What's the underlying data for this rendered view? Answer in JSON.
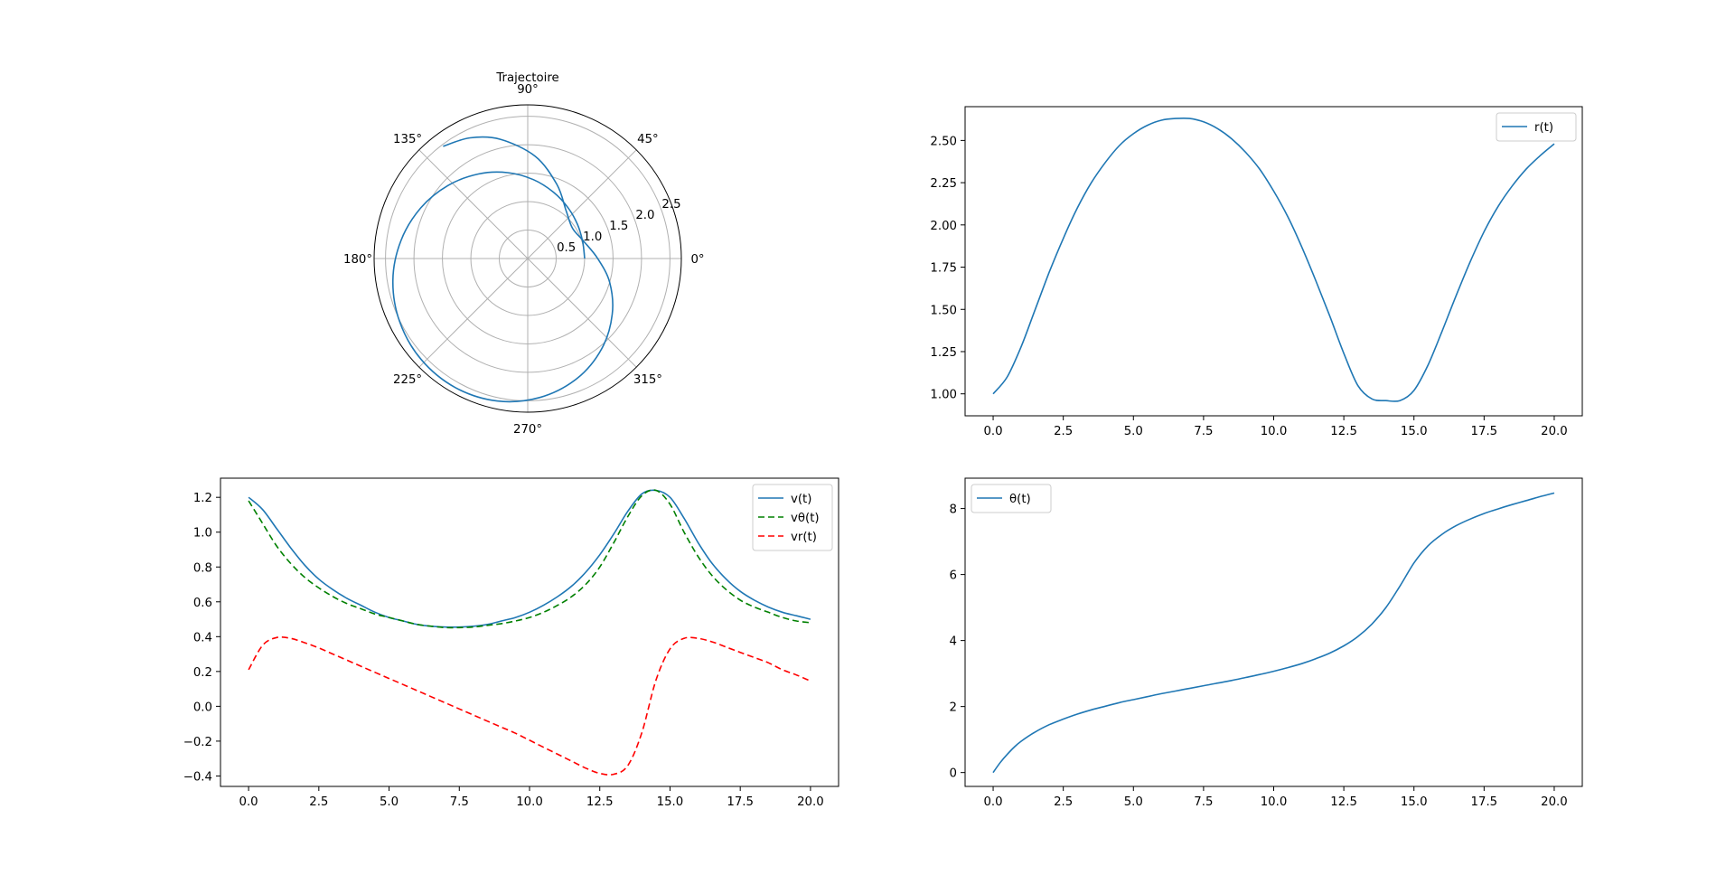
{
  "chart_data": [
    {
      "type": "polar",
      "title": "Trajectoire",
      "angle_ticks": [
        "0°",
        "45°",
        "90°",
        "135°",
        "180°",
        "225°",
        "270°",
        "315°"
      ],
      "angle_tick_degrees": [
        0,
        45,
        90,
        135,
        180,
        225,
        270,
        315
      ],
      "radial_ticks": [
        "0.5",
        "1.0",
        "1.5",
        "2.0",
        "2.5"
      ],
      "radial_tick_values": [
        0.5,
        1.0,
        1.5,
        2.0,
        2.5
      ],
      "rmax": 2.7,
      "grid": true,
      "series": [
        {
          "color": "#1f77b4",
          "dash": "",
          "theta": [
            0.0,
            0.3,
            0.6,
            0.9,
            1.2,
            1.5,
            1.8,
            2.1,
            2.4,
            2.7,
            3.0,
            3.3,
            3.6,
            3.9,
            4.2,
            4.5,
            4.8,
            5.1,
            5.4,
            5.7,
            6.0,
            6.283,
            6.58,
            6.88,
            7.18,
            7.48,
            7.78,
            8.08,
            8.3,
            8.5
          ],
          "r": [
            1.0,
            1.01,
            1.06,
            1.14,
            1.25,
            1.39,
            1.55,
            1.72,
            1.9,
            2.08,
            2.25,
            2.4,
            2.51,
            2.58,
            2.6,
            2.56,
            2.45,
            2.28,
            2.05,
            1.78,
            1.5,
            1.23,
            1.03,
            0.95,
            1.08,
            1.4,
            1.8,
            2.15,
            2.35,
            2.47
          ]
        }
      ]
    },
    {
      "type": "line",
      "x_ticks": [
        "0.0",
        "2.5",
        "5.0",
        "7.5",
        "10.0",
        "12.5",
        "15.0",
        "17.5",
        "20.0"
      ],
      "x_tick_values": [
        0,
        2.5,
        5,
        7.5,
        10,
        12.5,
        15,
        17.5,
        20
      ],
      "y_ticks": [
        "1.00",
        "1.25",
        "1.50",
        "1.75",
        "2.00",
        "2.25",
        "2.50"
      ],
      "y_tick_values": [
        1.0,
        1.25,
        1.5,
        1.75,
        2.0,
        2.25,
        2.5
      ],
      "xlim": [
        -1.0,
        21.0
      ],
      "ylim": [
        0.87,
        2.7
      ],
      "legend": "upper-right",
      "grid": false,
      "series": [
        {
          "name": "r(t)",
          "color": "#1f77b4",
          "dash": "",
          "x": [
            0,
            0.5,
            1,
            1.5,
            2,
            2.5,
            3,
            3.5,
            4,
            4.5,
            5,
            5.5,
            6,
            6.5,
            7,
            7.5,
            8,
            8.5,
            9,
            9.5,
            10,
            10.5,
            11,
            11.5,
            12,
            12.5,
            13,
            13.5,
            14,
            14.5,
            15,
            15.5,
            16,
            16.5,
            17,
            17.5,
            18,
            18.5,
            19,
            19.5,
            20
          ],
          "y": [
            1.0,
            1.1,
            1.28,
            1.5,
            1.72,
            1.92,
            2.1,
            2.25,
            2.37,
            2.47,
            2.54,
            2.59,
            2.62,
            2.63,
            2.63,
            2.61,
            2.57,
            2.51,
            2.43,
            2.33,
            2.2,
            2.05,
            1.87,
            1.67,
            1.46,
            1.24,
            1.05,
            0.97,
            0.96,
            0.96,
            1.02,
            1.17,
            1.37,
            1.58,
            1.78,
            1.96,
            2.11,
            2.23,
            2.33,
            2.41,
            2.48
          ]
        }
      ]
    },
    {
      "type": "line",
      "x_ticks": [
        "0.0",
        "2.5",
        "5.0",
        "7.5",
        "10.0",
        "12.5",
        "15.0",
        "17.5",
        "20.0"
      ],
      "x_tick_values": [
        0,
        2.5,
        5,
        7.5,
        10,
        12.5,
        15,
        17.5,
        20
      ],
      "y_ticks": [
        "−0.4",
        "−0.2",
        "0.0",
        "0.2",
        "0.4",
        "0.6",
        "0.8",
        "1.0",
        "1.2"
      ],
      "y_tick_values": [
        -0.4,
        -0.2,
        0.0,
        0.2,
        0.4,
        0.6,
        0.8,
        1.0,
        1.2
      ],
      "xlim": [
        -1.0,
        21.0
      ],
      "ylim": [
        -0.46,
        1.31
      ],
      "legend": "upper-right",
      "grid": false,
      "series": [
        {
          "name": "v(t)",
          "color": "#1f77b4",
          "dash": "",
          "x": [
            0,
            0.5,
            1,
            1.5,
            2,
            2.5,
            3,
            3.5,
            4,
            4.5,
            5,
            5.5,
            6,
            6.5,
            7,
            7.5,
            8,
            8.5,
            9,
            9.5,
            10,
            10.5,
            11,
            11.5,
            12,
            12.5,
            13,
            13.5,
            14,
            14.5,
            15,
            15.5,
            16,
            16.5,
            17,
            17.5,
            18,
            18.5,
            19,
            19.5,
            20
          ],
          "y": [
            1.2,
            1.13,
            1.02,
            0.91,
            0.81,
            0.73,
            0.67,
            0.62,
            0.58,
            0.54,
            0.51,
            0.49,
            0.47,
            0.46,
            0.455,
            0.455,
            0.46,
            0.47,
            0.49,
            0.51,
            0.54,
            0.58,
            0.63,
            0.69,
            0.77,
            0.87,
            0.99,
            1.12,
            1.22,
            1.24,
            1.2,
            1.08,
            0.94,
            0.82,
            0.73,
            0.66,
            0.61,
            0.57,
            0.54,
            0.52,
            0.5
          ]
        },
        {
          "name": "vθ(t)",
          "color": "#008000",
          "dash": "7,4",
          "x": [
            0,
            0.5,
            1,
            1.5,
            2,
            2.5,
            3,
            3.5,
            4,
            4.5,
            5,
            5.5,
            6,
            6.5,
            7,
            7.5,
            8,
            8.5,
            9,
            9.5,
            10,
            10.5,
            11,
            11.5,
            12,
            12.5,
            13,
            13.5,
            14,
            14.5,
            15,
            15.5,
            16,
            16.5,
            17,
            17.5,
            18,
            18.5,
            19,
            19.5,
            20
          ],
          "y": [
            1.18,
            1.05,
            0.92,
            0.82,
            0.74,
            0.68,
            0.63,
            0.59,
            0.56,
            0.53,
            0.51,
            0.49,
            0.47,
            0.46,
            0.452,
            0.452,
            0.455,
            0.465,
            0.475,
            0.49,
            0.51,
            0.54,
            0.58,
            0.63,
            0.7,
            0.8,
            0.94,
            1.09,
            1.21,
            1.24,
            1.16,
            1.0,
            0.86,
            0.75,
            0.67,
            0.61,
            0.57,
            0.54,
            0.51,
            0.49,
            0.48
          ]
        },
        {
          "name": "vr(t)",
          "color": "#ff0000",
          "dash": "7,4",
          "x": [
            0,
            0.5,
            1,
            1.5,
            2,
            2.5,
            3,
            3.5,
            4,
            4.5,
            5,
            5.5,
            6,
            6.5,
            7,
            7.5,
            8,
            8.5,
            9,
            9.5,
            10,
            10.5,
            11,
            11.5,
            12,
            12.5,
            13,
            13.5,
            14,
            14.5,
            15,
            15.5,
            16,
            16.5,
            17,
            17.5,
            18,
            18.5,
            19,
            19.5,
            20
          ],
          "y": [
            0.21,
            0.35,
            0.395,
            0.39,
            0.365,
            0.335,
            0.3,
            0.265,
            0.23,
            0.195,
            0.16,
            0.125,
            0.09,
            0.055,
            0.02,
            -0.015,
            -0.05,
            -0.085,
            -0.12,
            -0.155,
            -0.195,
            -0.235,
            -0.275,
            -0.315,
            -0.355,
            -0.385,
            -0.39,
            -0.34,
            -0.15,
            0.15,
            0.33,
            0.39,
            0.39,
            0.37,
            0.34,
            0.31,
            0.28,
            0.25,
            0.21,
            0.18,
            0.145
          ]
        }
      ]
    },
    {
      "type": "line",
      "x_ticks": [
        "0.0",
        "2.5",
        "5.0",
        "7.5",
        "10.0",
        "12.5",
        "15.0",
        "17.5",
        "20.0"
      ],
      "x_tick_values": [
        0,
        2.5,
        5,
        7.5,
        10,
        12.5,
        15,
        17.5,
        20
      ],
      "y_ticks": [
        "0",
        "2",
        "4",
        "6",
        "8"
      ],
      "y_tick_values": [
        0,
        2,
        4,
        6,
        8
      ],
      "xlim": [
        -1.0,
        21.0
      ],
      "ylim": [
        -0.42,
        8.92
      ],
      "legend": "upper-left",
      "grid": false,
      "series": [
        {
          "name": "θ(t)",
          "color": "#1f77b4",
          "dash": "",
          "x": [
            0,
            0.25,
            0.5,
            0.75,
            1,
            1.5,
            2,
            2.5,
            3,
            3.5,
            4,
            4.5,
            5,
            5.5,
            6,
            6.5,
            7,
            7.5,
            8,
            8.5,
            9,
            9.5,
            10,
            10.5,
            11,
            11.5,
            12,
            12.5,
            13,
            13.5,
            14,
            14.5,
            15,
            15.5,
            16,
            16.5,
            17,
            17.5,
            18,
            18.5,
            19,
            19.5,
            20
          ],
          "y": [
            0.0,
            0.3,
            0.55,
            0.77,
            0.95,
            1.23,
            1.45,
            1.62,
            1.77,
            1.9,
            2.01,
            2.12,
            2.21,
            2.3,
            2.39,
            2.47,
            2.55,
            2.63,
            2.71,
            2.79,
            2.88,
            2.97,
            3.07,
            3.18,
            3.3,
            3.45,
            3.62,
            3.84,
            4.12,
            4.5,
            5.0,
            5.65,
            6.35,
            6.87,
            7.22,
            7.48,
            7.68,
            7.85,
            7.99,
            8.12,
            8.24,
            8.36,
            8.47
          ]
        }
      ]
    }
  ]
}
